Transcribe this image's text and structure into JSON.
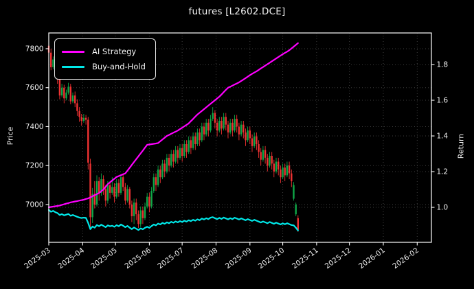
{
  "chart_data": {
    "type": "candlestick+line",
    "title": "futures [L2602.DCE]",
    "grid": true,
    "legend": {
      "position": "upper-left",
      "items": [
        {
          "label": "AI Strategy",
          "color": "#ff00ff"
        },
        {
          "label": "Buy-and-Hold",
          "color": "#00e8e8"
        }
      ]
    },
    "colors": {
      "background": "#000000",
      "candle_up": "#0fa848",
      "candle_down": "#ef3232",
      "ai_line": "#ff00ff",
      "bnh_line": "#00e8e8",
      "grid": "#3f3f3f",
      "text": "#ffffff",
      "spine": "#ffffff"
    },
    "x_axis": {
      "tick_labels": [
        "2025-03",
        "2025-04",
        "2025-05",
        "2025-06",
        "2025-07",
        "2025-08",
        "2025-09",
        "2025-10",
        "2025-11",
        "2025-12",
        "2026-01",
        "2026-02"
      ],
      "tick_days": [
        0,
        31,
        61,
        92,
        122,
        153,
        184,
        214,
        245,
        275,
        306,
        337
      ],
      "domain_days": [
        0,
        350
      ]
    },
    "price_axis": {
      "label": "Price",
      "ticks": [
        7000,
        7200,
        7400,
        7600,
        7800
      ],
      "range": [
        6806,
        7881
      ]
    },
    "return_axis": {
      "label": "Return",
      "ticks": [
        1.0,
        1.2,
        1.4,
        1.6,
        1.8
      ],
      "range": [
        0.804,
        1.977
      ]
    },
    "candles_format": [
      "day",
      "open",
      "high",
      "low",
      "close"
    ],
    "candles": [
      [
        0,
        7815,
        7835,
        7770,
        7780
      ],
      [
        2,
        7780,
        7800,
        7690,
        7705
      ],
      [
        4,
        7705,
        7760,
        7695,
        7745
      ],
      [
        6,
        7745,
        7765,
        7670,
        7690
      ],
      [
        8,
        7690,
        7710,
        7620,
        7645
      ],
      [
        10,
        7645,
        7665,
        7540,
        7560
      ],
      [
        12,
        7560,
        7620,
        7550,
        7600
      ],
      [
        14,
        7600,
        7615,
        7520,
        7545
      ],
      [
        16,
        7545,
        7590,
        7535,
        7575
      ],
      [
        18,
        7575,
        7625,
        7565,
        7605
      ],
      [
        20,
        7605,
        7620,
        7515,
        7530
      ],
      [
        22,
        7530,
        7575,
        7520,
        7560
      ],
      [
        24,
        7560,
        7580,
        7500,
        7520
      ],
      [
        26,
        7520,
        7540,
        7455,
        7480
      ],
      [
        28,
        7480,
        7500,
        7425,
        7450
      ],
      [
        30,
        7450,
        7465,
        7405,
        7430
      ],
      [
        32,
        7430,
        7465,
        7420,
        7445
      ],
      [
        34,
        7445,
        7460,
        7410,
        7435
      ],
      [
        36,
        7435,
        7450,
        7180,
        7215
      ],
      [
        38,
        7210,
        7235,
        6880,
        6935
      ],
      [
        40,
        6935,
        7085,
        6905,
        7055
      ],
      [
        42,
        7055,
        7120,
        6980,
        7000
      ],
      [
        44,
        7000,
        7150,
        6990,
        7120
      ],
      [
        46,
        7120,
        7140,
        7020,
        7060
      ],
      [
        48,
        7060,
        7160,
        7045,
        7130
      ],
      [
        50,
        7130,
        7150,
        7050,
        7080
      ],
      [
        52,
        7080,
        7100,
        6990,
        7020
      ],
      [
        54,
        7020,
        7120,
        7005,
        7100
      ],
      [
        56,
        7100,
        7120,
        7030,
        7060
      ],
      [
        58,
        7060,
        7140,
        7050,
        7090
      ],
      [
        60,
        7090,
        7110,
        7010,
        7040
      ],
      [
        62,
        7040,
        7130,
        7030,
        7110
      ],
      [
        64,
        7110,
        7130,
        7040,
        7060
      ],
      [
        66,
        7060,
        7150,
        7050,
        7140
      ],
      [
        68,
        7140,
        7160,
        7070,
        7090
      ],
      [
        70,
        7090,
        7110,
        7000,
        7020
      ],
      [
        72,
        7020,
        7100,
        7010,
        7080
      ],
      [
        74,
        7080,
        7090,
        6980,
        7000
      ],
      [
        76,
        7000,
        7020,
        6910,
        6940
      ],
      [
        78,
        6940,
        7030,
        6900,
        7010
      ],
      [
        80,
        7010,
        7030,
        6920,
        6950
      ],
      [
        82,
        6950,
        6970,
        6880,
        6900
      ],
      [
        84,
        6900,
        6990,
        6885,
        6970
      ],
      [
        86,
        6970,
        6990,
        6900,
        6930
      ],
      [
        88,
        6930,
        7010,
        6920,
        6990
      ],
      [
        90,
        6990,
        7060,
        6980,
        7040
      ],
      [
        92,
        7040,
        7060,
        6960,
        6990
      ],
      [
        94,
        6990,
        7090,
        6980,
        7070
      ],
      [
        96,
        7070,
        7160,
        7060,
        7140
      ],
      [
        98,
        7140,
        7160,
        7070,
        7100
      ],
      [
        100,
        7100,
        7200,
        7090,
        7180
      ],
      [
        102,
        7180,
        7200,
        7110,
        7140
      ],
      [
        104,
        7140,
        7230,
        7130,
        7210
      ],
      [
        106,
        7210,
        7230,
        7140,
        7170
      ],
      [
        108,
        7170,
        7260,
        7160,
        7240
      ],
      [
        110,
        7240,
        7260,
        7170,
        7200
      ],
      [
        112,
        7200,
        7280,
        7190,
        7260
      ],
      [
        114,
        7260,
        7280,
        7190,
        7220
      ],
      [
        116,
        7220,
        7300,
        7210,
        7280
      ],
      [
        118,
        7280,
        7300,
        7210,
        7240
      ],
      [
        120,
        7240,
        7310,
        7230,
        7290
      ],
      [
        122,
        7290,
        7310,
        7220,
        7250
      ],
      [
        124,
        7250,
        7330,
        7240,
        7310
      ],
      [
        126,
        7310,
        7330,
        7240,
        7270
      ],
      [
        128,
        7270,
        7350,
        7260,
        7330
      ],
      [
        130,
        7330,
        7350,
        7260,
        7290
      ],
      [
        132,
        7290,
        7370,
        7280,
        7350
      ],
      [
        134,
        7350,
        7370,
        7280,
        7310
      ],
      [
        136,
        7310,
        7390,
        7300,
        7370
      ],
      [
        138,
        7370,
        7390,
        7300,
        7330
      ],
      [
        140,
        7330,
        7420,
        7320,
        7400
      ],
      [
        142,
        7400,
        7420,
        7330,
        7360
      ],
      [
        144,
        7360,
        7440,
        7350,
        7420
      ],
      [
        146,
        7420,
        7440,
        7350,
        7380
      ],
      [
        148,
        7380,
        7460,
        7370,
        7440
      ],
      [
        150,
        7440,
        7500,
        7430,
        7470
      ],
      [
        152,
        7470,
        7485,
        7390,
        7420
      ],
      [
        154,
        7420,
        7440,
        7350,
        7380
      ],
      [
        156,
        7380,
        7450,
        7370,
        7430
      ],
      [
        158,
        7430,
        7450,
        7360,
        7390
      ],
      [
        160,
        7390,
        7470,
        7380,
        7450
      ],
      [
        162,
        7450,
        7470,
        7380,
        7410
      ],
      [
        164,
        7410,
        7430,
        7340,
        7370
      ],
      [
        166,
        7370,
        7440,
        7360,
        7420
      ],
      [
        168,
        7420,
        7440,
        7350,
        7380
      ],
      [
        170,
        7380,
        7460,
        7370,
        7440
      ],
      [
        172,
        7440,
        7460,
        7370,
        7400
      ],
      [
        174,
        7400,
        7420,
        7330,
        7360
      ],
      [
        176,
        7360,
        7430,
        7350,
        7410
      ],
      [
        178,
        7410,
        7430,
        7340,
        7370
      ],
      [
        180,
        7370,
        7390,
        7300,
        7330
      ],
      [
        182,
        7330,
        7400,
        7320,
        7380
      ],
      [
        184,
        7380,
        7400,
        7310,
        7340
      ],
      [
        186,
        7340,
        7360,
        7270,
        7300
      ],
      [
        188,
        7300,
        7370,
        7290,
        7350
      ],
      [
        190,
        7350,
        7370,
        7280,
        7310
      ],
      [
        192,
        7310,
        7330,
        7240,
        7270
      ],
      [
        194,
        7270,
        7290,
        7200,
        7230
      ],
      [
        196,
        7230,
        7300,
        7220,
        7280
      ],
      [
        198,
        7280,
        7300,
        7210,
        7240
      ],
      [
        200,
        7240,
        7260,
        7170,
        7200
      ],
      [
        202,
        7200,
        7270,
        7190,
        7250
      ],
      [
        204,
        7250,
        7270,
        7180,
        7210
      ],
      [
        206,
        7210,
        7230,
        7140,
        7170
      ],
      [
        208,
        7170,
        7240,
        7160,
        7220
      ],
      [
        210,
        7220,
        7240,
        7150,
        7180
      ],
      [
        212,
        7180,
        7200,
        7110,
        7140
      ],
      [
        214,
        7140,
        7210,
        7130,
        7190
      ],
      [
        216,
        7190,
        7210,
        7120,
        7150
      ],
      [
        218,
        7150,
        7220,
        7140,
        7200
      ],
      [
        220,
        7200,
        7220,
        7130,
        7160
      ],
      [
        222,
        7160,
        7180,
        7090,
        7120
      ],
      [
        224,
        7030,
        7115,
        7020,
        7100
      ],
      [
        226,
        6950,
        7010,
        6940,
        7000
      ],
      [
        228,
        6930,
        6945,
        6860,
        6870
      ]
    ],
    "series": [
      {
        "name": "AI Strategy",
        "axis": "return",
        "color": "#ff00ff",
        "values": [
          1.0,
          1.002,
          1.004,
          1.006,
          1.008,
          1.01,
          1.014,
          1.017,
          1.021,
          1.024,
          1.028,
          1.03,
          1.033,
          1.035,
          1.038,
          1.04,
          1.043,
          1.047,
          1.05,
          1.056,
          1.062,
          1.068,
          1.074,
          1.08,
          1.09,
          1.1,
          1.115,
          1.13,
          1.14,
          1.15,
          1.16,
          1.17,
          1.175,
          1.18,
          1.185,
          1.19,
          1.206,
          1.222,
          1.238,
          1.254,
          1.27,
          1.286,
          1.302,
          1.318,
          1.334,
          1.35,
          1.352,
          1.354,
          1.356,
          1.358,
          1.36,
          1.37,
          1.38,
          1.39,
          1.4,
          1.406,
          1.412,
          1.418,
          1.424,
          1.43,
          1.438,
          1.446,
          1.454,
          1.462,
          1.47,
          1.483,
          1.495,
          1.508,
          1.52,
          1.53,
          1.54,
          1.55,
          1.56,
          1.57,
          1.58,
          1.59,
          1.6,
          1.61,
          1.62,
          1.632,
          1.645,
          1.658,
          1.67,
          1.676,
          1.682,
          1.688,
          1.694,
          1.7,
          1.708,
          1.716,
          1.724,
          1.732,
          1.74,
          1.748,
          1.755,
          1.762,
          1.77,
          1.778,
          1.786,
          1.794,
          1.802,
          1.81,
          1.818,
          1.826,
          1.834,
          1.842,
          1.85,
          1.858,
          1.865,
          1.872,
          1.88,
          1.89,
          1.9,
          1.91,
          1.92
        ]
      },
      {
        "name": "Buy-and-Hold",
        "axis": "return",
        "color": "#00e8e8",
        "values": [
          0.985,
          0.975,
          0.98,
          0.973,
          0.968,
          0.957,
          0.962,
          0.955,
          0.959,
          0.963,
          0.953,
          0.957,
          0.952,
          0.947,
          0.943,
          0.94,
          0.942,
          0.941,
          0.913,
          0.878,
          0.893,
          0.886,
          0.901,
          0.894,
          0.903,
          0.896,
          0.889,
          0.899,
          0.894,
          0.897,
          0.891,
          0.9,
          0.894,
          0.904,
          0.897,
          0.889,
          0.896,
          0.886,
          0.878,
          0.887,
          0.88,
          0.873,
          0.882,
          0.877,
          0.885,
          0.891,
          0.885,
          0.895,
          0.904,
          0.899,
          0.909,
          0.904,
          0.913,
          0.908,
          0.916,
          0.911,
          0.919,
          0.914,
          0.921,
          0.916,
          0.923,
          0.918,
          0.925,
          0.92,
          0.928,
          0.923,
          0.93,
          0.925,
          0.933,
          0.928,
          0.937,
          0.932,
          0.939,
          0.934,
          0.942,
          0.945,
          0.939,
          0.934,
          0.941,
          0.935,
          0.943,
          0.938,
          0.933,
          0.939,
          0.934,
          0.942,
          0.937,
          0.932,
          0.938,
          0.933,
          0.928,
          0.934,
          0.929,
          0.924,
          0.93,
          0.925,
          0.92,
          0.915,
          0.921,
          0.916,
          0.911,
          0.918,
          0.913,
          0.908,
          0.914,
          0.909,
          0.904,
          0.91,
          0.905,
          0.911,
          0.906,
          0.901,
          0.899,
          0.886,
          0.87
        ]
      }
    ]
  }
}
